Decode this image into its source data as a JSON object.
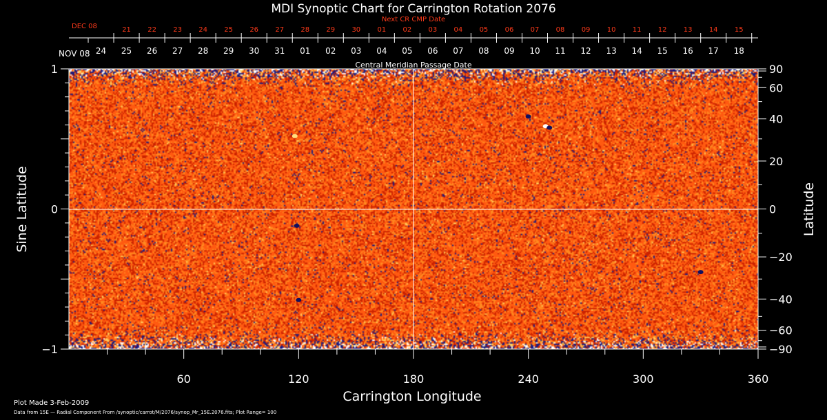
{
  "chart_data": {
    "type": "heatmap",
    "title": "MDI Synoptic Chart for Carrington Rotation 2076",
    "xlabel": "Carrington Longitude",
    "ylabel_left": "Sine Latitude",
    "ylabel_right": "Latitude",
    "xlim": [
      0,
      360
    ],
    "ylim": [
      -1,
      1
    ],
    "x_ticks": [
      60,
      120,
      180,
      240,
      300,
      360
    ],
    "y_ticks_left": [
      {
        "value": 1,
        "label": "1"
      },
      {
        "value": 0,
        "label": "0"
      },
      {
        "value": -1,
        "label": "−1"
      }
    ],
    "latitude_ticks": [
      {
        "deg": 90,
        "label": "90"
      },
      {
        "deg": 60,
        "label": "60"
      },
      {
        "deg": 40,
        "label": "40"
      },
      {
        "deg": 20,
        "label": "20"
      },
      {
        "deg": 0,
        "label": "0"
      },
      {
        "deg": -20,
        "label": "−20"
      },
      {
        "deg": -40,
        "label": "−40"
      },
      {
        "deg": -60,
        "label": "−60"
      },
      {
        "deg": -90,
        "label": "−90"
      }
    ],
    "cmp_axis": {
      "label": "Central Meridian Passage Date",
      "start_label": "NOV 08",
      "dates": [
        "18",
        "17",
        "16",
        "15",
        "14",
        "13",
        "12",
        "11",
        "10",
        "09",
        "08",
        "07",
        "06",
        "05",
        "04",
        "03",
        "02",
        "01",
        "31",
        "30",
        "29",
        "28",
        "27",
        "26",
        "25",
        "24"
      ],
      "first_longitude": 350,
      "step": -13.33
    },
    "next_cmp_axis": {
      "label": "Next CR CMP Date",
      "start_label": "DEC 08",
      "dates": [
        "15",
        "14",
        "13",
        "12",
        "11",
        "10",
        "09",
        "08",
        "07",
        "06",
        "05",
        "04",
        "03",
        "02",
        "01",
        "30",
        "29",
        "28",
        "27",
        "26",
        "25",
        "24",
        "23",
        "22",
        "21"
      ],
      "first_longitude": 350,
      "step": -13.33
    },
    "colormap": [
      "#1a1a80",
      "#cc2200",
      "#ff5a10",
      "#ff8a20",
      "#ffd060",
      "#ffffff"
    ],
    "grid_lines": {
      "x": 180,
      "y": 0
    },
    "active_regions": [
      {
        "lon": 118,
        "sinlat": 0.52,
        "polarity": "mixed"
      },
      {
        "lon": 119,
        "sinlat": -0.12,
        "polarity": "negative"
      },
      {
        "lon": 249,
        "sinlat": 0.59,
        "polarity": "positive"
      },
      {
        "lon": 251,
        "sinlat": 0.58,
        "polarity": "negative"
      },
      {
        "lon": 240,
        "sinlat": 0.66,
        "polarity": "negative"
      },
      {
        "lon": 120,
        "sinlat": -0.65,
        "polarity": "negative"
      },
      {
        "lon": 330,
        "sinlat": -0.45,
        "polarity": "negative"
      }
    ]
  },
  "footer": {
    "plot_made": "Plot Made  3-Feb-2009",
    "source": "Data from 15E — Radial Component From /synoptic/carrot/M/2076/synop_Mr_15E.2076.fits; Plot Range=  100"
  }
}
